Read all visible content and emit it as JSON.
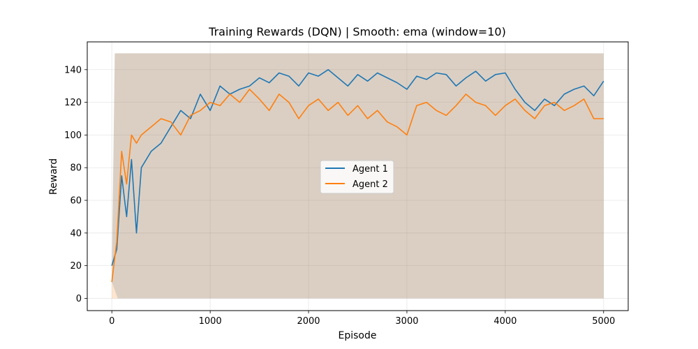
{
  "chart_data": {
    "type": "line",
    "title": "Training Rewards (DQN) | Smooth: ema (window=10)",
    "xlabel": "Episode",
    "ylabel": "Reward",
    "xlim": [
      -250,
      5250
    ],
    "ylim": [
      -7.5,
      157
    ],
    "xticks": [
      0,
      1000,
      2000,
      3000,
      4000,
      5000
    ],
    "xtick_labels": [
      "0",
      "1000",
      "2000",
      "3000",
      "4000",
      "5000"
    ],
    "yticks": [
      0,
      20,
      40,
      60,
      80,
      100,
      120,
      140
    ],
    "ytick_labels": [
      "0",
      "20",
      "40",
      "60",
      "80",
      "100",
      "120",
      "140"
    ],
    "grid": true,
    "legend_position": "center",
    "raw_band": {
      "description_range": [
        0,
        150
      ]
    },
    "series": [
      {
        "name": "Agent 1",
        "color": "#1f77b4",
        "raw_alpha": 0.2,
        "x": [
          0,
          50,
          100,
          150,
          200,
          250,
          300,
          400,
          500,
          600,
          700,
          800,
          900,
          1000,
          1100,
          1200,
          1300,
          1400,
          1500,
          1600,
          1700,
          1800,
          1900,
          2000,
          2100,
          2200,
          2300,
          2400,
          2500,
          2600,
          2700,
          2800,
          2900,
          3000,
          3100,
          3200,
          3300,
          3400,
          3500,
          3600,
          3700,
          3800,
          3900,
          4000,
          4100,
          4200,
          4300,
          4400,
          4500,
          4600,
          4700,
          4800,
          4900,
          5000
        ],
        "y": [
          20,
          30,
          75,
          50,
          85,
          40,
          80,
          90,
          95,
          105,
          115,
          110,
          125,
          115,
          130,
          125,
          128,
          130,
          135,
          132,
          138,
          136,
          130,
          138,
          136,
          140,
          135,
          130,
          137,
          133,
          138,
          135,
          132,
          128,
          136,
          134,
          138,
          137,
          130,
          135,
          139,
          133,
          137,
          138,
          128,
          120,
          115,
          122,
          118,
          125,
          128,
          130,
          124,
          133
        ]
      },
      {
        "name": "Agent 2",
        "color": "#ff7f0e",
        "raw_alpha": 0.2,
        "x": [
          0,
          50,
          100,
          150,
          200,
          250,
          300,
          400,
          500,
          600,
          700,
          800,
          900,
          1000,
          1100,
          1200,
          1300,
          1400,
          1500,
          1600,
          1700,
          1800,
          1900,
          2000,
          2100,
          2200,
          2300,
          2400,
          2500,
          2600,
          2700,
          2800,
          2900,
          3000,
          3100,
          3200,
          3300,
          3400,
          3500,
          3600,
          3700,
          3800,
          3900,
          4000,
          4100,
          4200,
          4300,
          4400,
          4500,
          4600,
          4700,
          4800,
          4900,
          5000
        ],
        "y": [
          10,
          35,
          90,
          70,
          100,
          95,
          100,
          105,
          110,
          108,
          100,
          112,
          115,
          120,
          118,
          125,
          120,
          128,
          122,
          115,
          125,
          120,
          110,
          118,
          122,
          115,
          120,
          112,
          118,
          110,
          115,
          108,
          105,
          100,
          118,
          120,
          115,
          112,
          118,
          125,
          120,
          118,
          112,
          118,
          122,
          115,
          110,
          118,
          120,
          115,
          118,
          122,
          110,
          110
        ]
      }
    ]
  }
}
